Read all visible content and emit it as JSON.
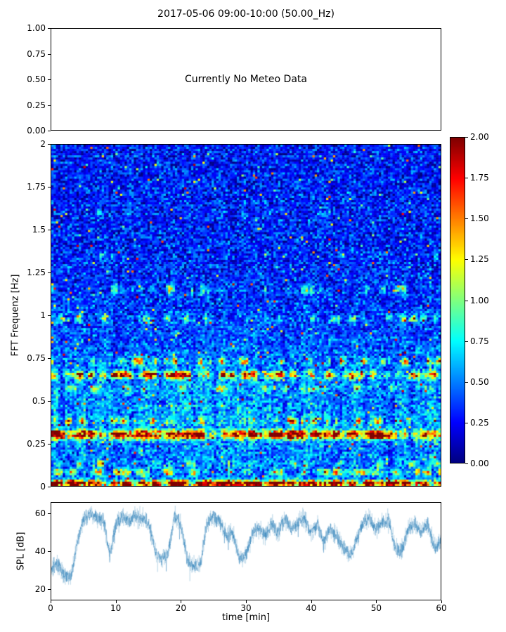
{
  "title": "2017-05-06 09:00-10:00 (50.00_Hz)",
  "chart_data": [
    {
      "id": "meteo",
      "type": "line",
      "annotation": "Currently No Meteo Data",
      "ylim": [
        0,
        1
      ],
      "yticks": [
        {
          "v": 0.0,
          "label": "0.00"
        },
        {
          "v": 0.25,
          "label": "0.25"
        },
        {
          "v": 0.5,
          "label": "0.50"
        },
        {
          "v": 0.75,
          "label": "0.75"
        },
        {
          "v": 1.0,
          "label": "1.00"
        }
      ],
      "series": []
    },
    {
      "id": "spectrogram",
      "type": "heatmap",
      "ylabel": "FFT Frequenz [Hz]",
      "xlim": [
        0,
        60
      ],
      "ylim": [
        0,
        2
      ],
      "vmin": 0,
      "vmax": 2,
      "colormap": "jet",
      "yticks": [
        {
          "v": 0,
          "label": "0"
        },
        {
          "v": 0.25,
          "label": "0.25"
        },
        {
          "v": 0.5,
          "label": "0.5"
        },
        {
          "v": 0.75,
          "label": "0.75"
        },
        {
          "v": 1,
          "label": "1"
        },
        {
          "v": 1.25,
          "label": "1.25"
        },
        {
          "v": 1.5,
          "label": "1.5"
        },
        {
          "v": 1.75,
          "label": "1.75"
        },
        {
          "v": 2,
          "label": "2"
        }
      ],
      "colorbar_ticks": [
        {
          "v": 2.0,
          "label": "2.00"
        },
        {
          "v": 1.75,
          "label": "1.75"
        },
        {
          "v": 1.5,
          "label": "1.50"
        },
        {
          "v": 1.25,
          "label": "1.25"
        },
        {
          "v": 1.0,
          "label": "1.00"
        },
        {
          "v": 0.75,
          "label": "0.75"
        },
        {
          "v": 0.5,
          "label": "0.50"
        },
        {
          "v": 0.25,
          "label": "0.25"
        },
        {
          "v": 0.0,
          "label": "0.00"
        }
      ],
      "grid": {
        "cols": 170,
        "rows": 160
      },
      "noise": {
        "seed": 42,
        "base": 0.36,
        "spread": 0.28,
        "speckle_prob": 0.015
      },
      "bands": [
        {
          "freq": 0.015,
          "width": 0.018,
          "intensity": 2.2,
          "patchiness": 0.02
        },
        {
          "freq": 0.08,
          "width": 0.02,
          "intensity": 1.0,
          "patchiness": 0.45
        },
        {
          "freq": 0.13,
          "width": 0.02,
          "intensity": 0.8,
          "patchiness": 0.5
        },
        {
          "freq": 0.3,
          "width": 0.025,
          "intensity": 1.9,
          "patchiness": 0.15
        },
        {
          "freq": 0.38,
          "width": 0.02,
          "intensity": 1.1,
          "patchiness": 0.5
        },
        {
          "freq": 0.57,
          "width": 0.02,
          "intensity": 0.8,
          "patchiness": 0.55
        },
        {
          "freq": 0.65,
          "width": 0.022,
          "intensity": 1.5,
          "patchiness": 0.3
        },
        {
          "freq": 0.73,
          "width": 0.02,
          "intensity": 1.2,
          "patchiness": 0.5
        },
        {
          "freq": 0.98,
          "width": 0.02,
          "intensity": 0.9,
          "patchiness": 0.5
        },
        {
          "freq": 1.15,
          "width": 0.025,
          "intensity": 1.0,
          "patchiness": 0.55
        },
        {
          "freq": 1.35,
          "width": 0.02,
          "intensity": 0.5,
          "patchiness": 0.7
        },
        {
          "freq": 1.6,
          "width": 0.02,
          "intensity": 0.5,
          "patchiness": 0.7
        },
        {
          "freq": 0.45,
          "width": 0.45,
          "intensity": 0.28,
          "patchiness": 0.1
        }
      ]
    },
    {
      "id": "spl",
      "type": "line",
      "ylabel": "SPL [dB]",
      "xlabel": "time [min]",
      "xlim": [
        0,
        60
      ],
      "ylim": [
        14,
        66
      ],
      "yticks": [
        {
          "v": 20,
          "label": "20"
        },
        {
          "v": 40,
          "label": "40"
        },
        {
          "v": 60,
          "label": "60"
        }
      ],
      "xticks": [
        {
          "v": 0,
          "label": "0"
        },
        {
          "v": 10,
          "label": "10"
        },
        {
          "v": 20,
          "label": "20"
        },
        {
          "v": 30,
          "label": "30"
        },
        {
          "v": 40,
          "label": "40"
        },
        {
          "v": 50,
          "label": "50"
        },
        {
          "v": 60,
          "label": "60"
        }
      ],
      "line_color": "#1f77b4",
      "jitter_db": 3.0,
      "x_minutes": [
        0,
        1,
        2,
        3,
        4,
        5,
        6,
        7,
        8,
        9,
        10,
        11,
        12,
        13,
        14,
        15,
        16,
        17,
        18,
        19,
        20,
        21,
        22,
        23,
        24,
        25,
        26,
        27,
        28,
        29,
        30,
        31,
        32,
        33,
        34,
        35,
        36,
        37,
        38,
        39,
        40,
        41,
        42,
        43,
        44,
        45,
        46,
        47,
        48,
        49,
        50,
        51,
        52,
        53,
        54,
        55,
        56,
        57,
        58,
        59,
        60
      ],
      "values": [
        30,
        33,
        27,
        26,
        44,
        58,
        60,
        58,
        57,
        38,
        55,
        58,
        57,
        59,
        58,
        56,
        40,
        36,
        38,
        60,
        54,
        35,
        32,
        33,
        55,
        58,
        56,
        48,
        50,
        36,
        38,
        50,
        52,
        48,
        55,
        50,
        58,
        52,
        55,
        58,
        50,
        55,
        45,
        52,
        48,
        42,
        38,
        45,
        55,
        58,
        52,
        55,
        57,
        42,
        40,
        52,
        55,
        50,
        55,
        42,
        46
      ]
    }
  ]
}
